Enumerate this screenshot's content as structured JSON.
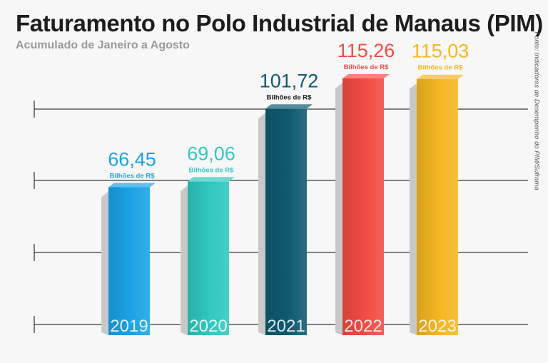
{
  "title": "Faturamento no Polo Industrial de Manaus (PIM)",
  "subtitle": "Acumulado de Janeiro a Agosto",
  "source": "Fonte: Indicadores de Desempenho do PIM/Suframa",
  "chart_data": {
    "type": "bar",
    "title": "Faturamento no Polo Industrial de Manaus (PIM)",
    "subtitle": "Acumulado de Janeiro a Agosto",
    "categories": [
      "2019",
      "2020",
      "2021",
      "2022",
      "2023"
    ],
    "values": [
      66.45,
      69.06,
      101.72,
      115.26,
      115.03
    ],
    "value_labels": [
      "66,45",
      "69,06",
      "101,72",
      "115,26",
      "115,03"
    ],
    "unit_label": "Bilhões de R$",
    "colors": [
      "#1aa3e6",
      "#2ec9bf",
      "#0f5a72",
      "#f24b44",
      "#f5b621"
    ],
    "label_colors": [
      "#1aa3e6",
      "#2ec9bf",
      "#0f5a72",
      "#f24b44",
      "#f5b621"
    ],
    "grid": true,
    "legend": "none"
  }
}
